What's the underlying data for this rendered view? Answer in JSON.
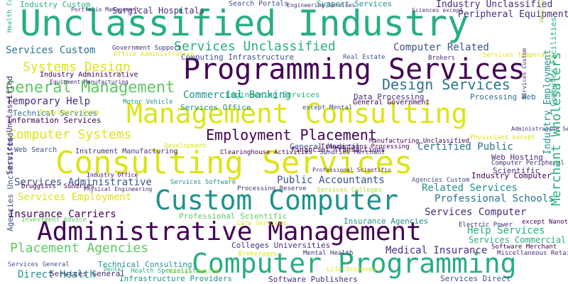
{
  "words": [
    "Unclassified Industry",
    "Programming Services",
    "Management Consulting",
    "Consulting Services",
    "Custom Computer",
    "Administrative Management",
    "Computer Programming",
    "General Management",
    "Employment Placement",
    "Computer Systems",
    "Systems Design",
    "Placement Agencies",
    "Design Services",
    "Services Unclassified",
    "Temporary Help",
    "Commercial Banking",
    "Public Accountants",
    "Certified Public",
    "Related Services",
    "Computer Related",
    "Services Computer",
    "Help Services",
    "Medical Insurance",
    "Insurance Carriers",
    "Services Custom",
    "Services Administrative",
    "Services Employment",
    "Professional Schools",
    "Direct Health",
    "Services Commercial",
    "Industry Unclassified",
    "Peripheral Equipment",
    "Surgical Hospitals",
    "Industry Custom",
    "Support Services",
    "Engineering Services",
    "Services Office",
    "Computing Infrastructure",
    "General Medical",
    "Professional Scientific",
    "Colleges Universities",
    "Insurance Agencies",
    "Technical Consulting",
    "Infrastructure Providers",
    "Software Publishers",
    "Services Direct",
    "Services General",
    "Information Services",
    "Technical Services",
    "Data Processing",
    "Processing Web",
    "Web Hosting",
    "Scientific",
    "Industry Computer",
    "Web Search",
    "Instrument Manufacturing",
    "Industry Administrative",
    "Providers Data",
    "Financial Transactions",
    "Search Portals",
    "General Government",
    "Clearinghouse Activities",
    "Sundries Merchant",
    "Transactions Processing",
    "Services Colleges",
    "Services Temporary",
    "Manufacturing Unclassified",
    "Government Support",
    "Office Administrative",
    "Investment Advice",
    "Druggists' Sundries",
    "Services General",
    "Health Specialists",
    "Mental Health",
    "Brokerages",
    "Mental Health",
    "Care Services",
    "Processing Reserve",
    "Services Software",
    "Development",
    "Real Estate",
    "Brokers",
    "except Mental",
    "Electric Power",
    "except Nanotechnology",
    "Software Merchant",
    "Agencies Custom",
    "Computer Peripheral",
    "Physicians except",
    "Miscellaneous Retailers",
    "Life Sciences",
    "Motor Vehicle",
    "Equipment Manufacturing",
    "Industry Office",
    "Portfolio Management",
    "Sciences except",
    "Engineering Services",
    "Physical Engineering",
    "Administrative Services",
    "Professional Scientific",
    "Dental"
  ],
  "vertical_words": [
    "Merchant Wholesalers",
    "Industry Employment",
    "Agencies Unclassified",
    "Services Unclassified",
    "Computer Facilities",
    "Health Care",
    "Services Custom",
    "Physical Engineering"
  ]
}
